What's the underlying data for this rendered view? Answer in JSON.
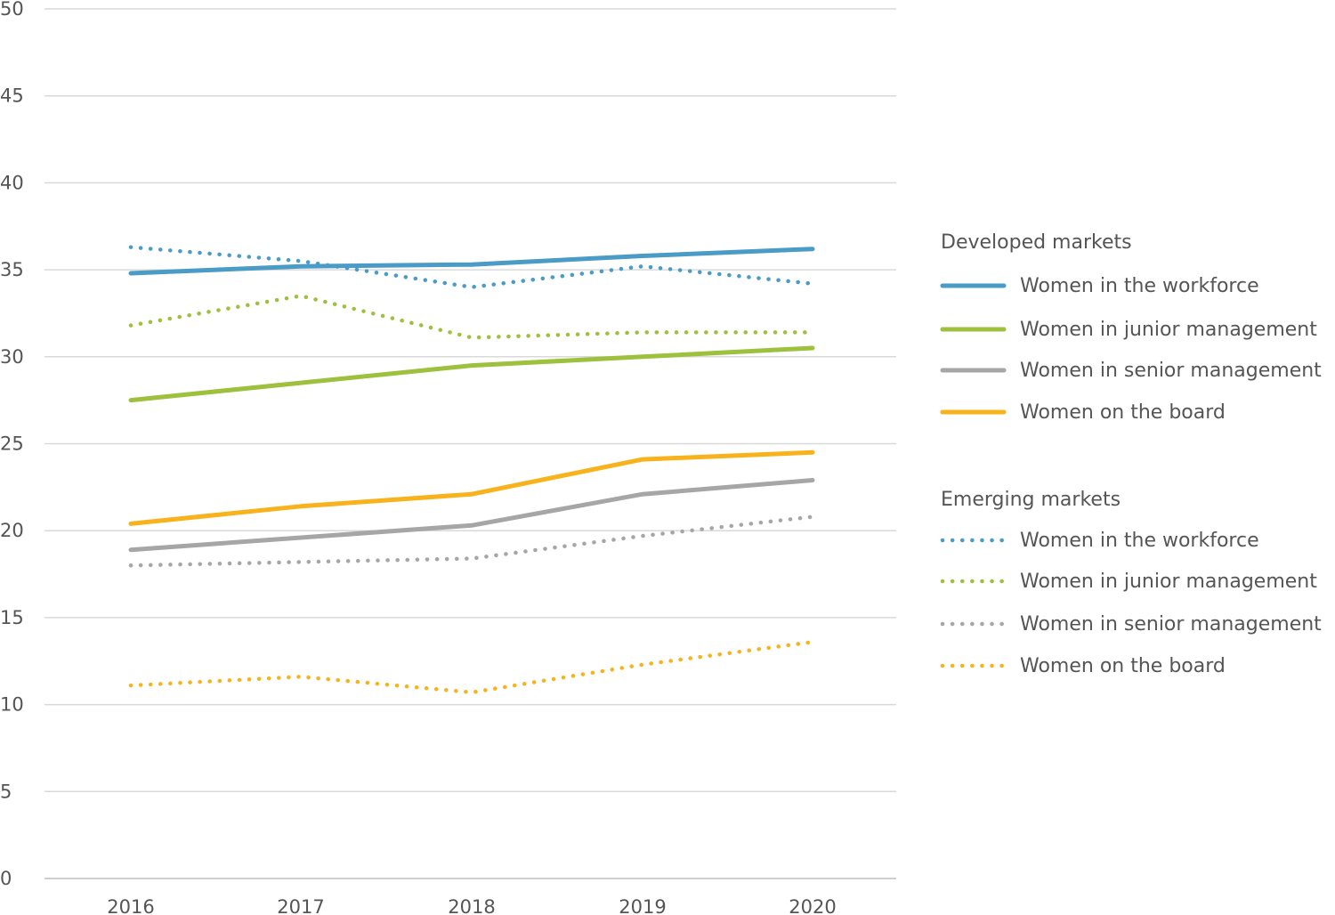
{
  "chart_data": {
    "type": "line",
    "categories": [
      "2016",
      "2017",
      "2018",
      "2019",
      "2020"
    ],
    "ylim": [
      0,
      50
    ],
    "yticks": [
      0,
      5,
      10,
      15,
      20,
      25,
      30,
      35,
      40,
      45,
      50
    ],
    "grid": true,
    "legend_position": "right",
    "groups": [
      {
        "name": "Developed markets",
        "style": "solid",
        "series": [
          {
            "name": "Women in the workforce",
            "color": "#4a9cc6",
            "values": [
              34.8,
              35.2,
              35.3,
              35.8,
              36.2
            ]
          },
          {
            "name": "Women in junior management",
            "color": "#9dc13d",
            "values": [
              27.5,
              28.5,
              29.5,
              30.0,
              30.5
            ]
          },
          {
            "name": "Women in senior management",
            "color": "#a6a6a6",
            "values": [
              18.9,
              19.6,
              20.3,
              22.1,
              22.9
            ]
          },
          {
            "name": "Women on the board",
            "color": "#f8b21c",
            "values": [
              20.4,
              21.4,
              22.1,
              24.1,
              24.5
            ]
          }
        ]
      },
      {
        "name": "Emerging markets",
        "style": "dotted",
        "series": [
          {
            "name": "Women in the workforce",
            "color": "#4a9cc6",
            "values": [
              36.3,
              35.5,
              34.0,
              35.2,
              34.2
            ]
          },
          {
            "name": "Women in junior management",
            "color": "#9dc13d",
            "values": [
              31.8,
              33.5,
              31.1,
              31.4,
              31.4
            ]
          },
          {
            "name": "Women in senior management",
            "color": "#a6a6a6",
            "values": [
              18.0,
              18.2,
              18.4,
              19.7,
              20.8
            ]
          },
          {
            "name": "Women on the board",
            "color": "#f8b21c",
            "values": [
              11.1,
              11.6,
              10.7,
              12.3,
              13.6
            ]
          }
        ]
      }
    ]
  }
}
